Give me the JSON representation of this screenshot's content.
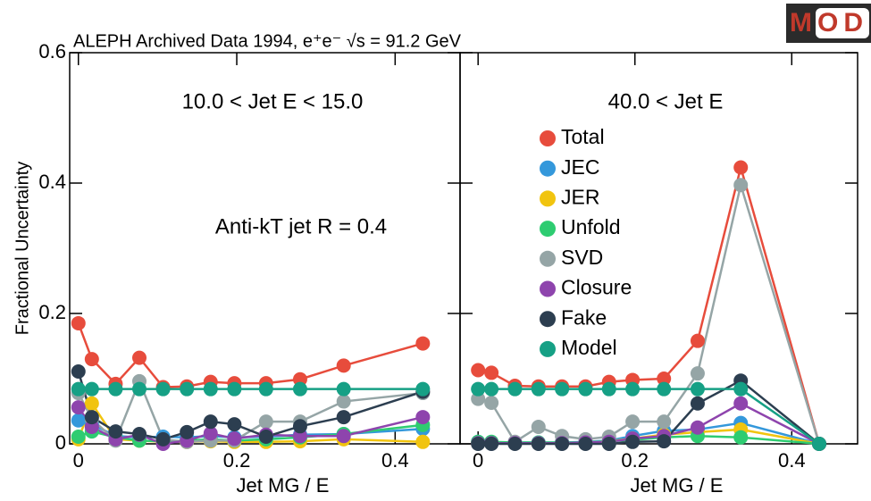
{
  "logo": "MOD",
  "chart_data": [
    {
      "type": "line",
      "title": "ALEPH Archived Data 1994, e⁺e⁻ √s = 91.2 GeV",
      "ylabel": "Fractional Uncertainty",
      "xlabel": "Jet MG / E",
      "annotations": [
        "10.0 < Jet E < 15.0",
        "Anti-kT jet R = 0.4"
      ],
      "x": [
        0,
        0.017,
        0.047,
        0.077,
        0.107,
        0.137,
        0.167,
        0.197,
        0.237,
        0.28,
        0.335,
        0.435
      ],
      "xlim": [
        -0.011,
        0.482
      ],
      "xticks": [
        0,
        0.2,
        0.4
      ],
      "ylim": [
        0,
        0.6
      ],
      "yticks": [
        0,
        0.2,
        0.4,
        0.6
      ],
      "series": [
        {
          "color": "#e74c3c",
          "values": [
            0.185,
            0.13,
            0.092,
            0.132,
            0.087,
            0.088,
            0.095,
            0.093,
            0.093,
            0.099,
            0.12,
            0.154
          ]
        },
        {
          "color": "#3498db",
          "values": [
            0.036,
            0.03,
            0.012,
            0.01,
            0.011,
            0.01,
            0.012,
            0.01,
            0.011,
            0.014,
            0.015,
            0.023
          ]
        },
        {
          "color": "#f1c40f",
          "values": [
            0.007,
            0.062,
            0.007,
            0.005,
            0.003,
            0.003,
            0.004,
            0.003,
            0.003,
            0.004,
            0.007,
            0.003
          ]
        },
        {
          "color": "#2ecc71",
          "values": [
            0.011,
            0.019,
            0.01,
            0.005,
            0.004,
            0.005,
            0.007,
            0.005,
            0.007,
            0.01,
            0.015,
            0.029
          ]
        },
        {
          "color": "#95a5a6",
          "values": [
            0.078,
            0.038,
            0.005,
            0.096,
            0.007,
            0.003,
            0.005,
            0.005,
            0.034,
            0.034,
            0.065,
            0.078
          ]
        },
        {
          "color": "#8e44ad",
          "values": [
            0.056,
            0.026,
            0.007,
            0.014,
            0,
            0.005,
            0.016,
            0.008,
            0.014,
            0.012,
            0.012,
            0.041
          ]
        },
        {
          "color": "#2c3e50",
          "values": [
            0.111,
            0.041,
            0.019,
            0.015,
            0.007,
            0.018,
            0.034,
            0.03,
            0.011,
            0.027,
            0.041,
            0.08
          ]
        },
        {
          "color": "#16a085",
          "values": [
            0.084,
            0.084,
            0.084,
            0.084,
            0.084,
            0.084,
            0.084,
            0.084,
            0.084,
            0.084,
            0.084,
            0.084
          ]
        }
      ]
    },
    {
      "type": "line",
      "xlabel": "Jet MG / E",
      "annotations": [
        "40.0 < Jet E"
      ],
      "x": [
        0,
        0.017,
        0.047,
        0.077,
        0.107,
        0.137,
        0.167,
        0.197,
        0.237,
        0.28,
        0.335,
        0.435
      ],
      "xlim": [
        -0.023,
        0.484
      ],
      "xticks": [
        0,
        0.2,
        0.4
      ],
      "ylim": [
        0,
        0.6
      ],
      "series": [
        {
          "name": "Total",
          "color": "#e74c3c",
          "values": [
            0.113,
            0.109,
            0.089,
            0.088,
            0.088,
            0.088,
            0.095,
            0.098,
            0.1,
            0.158,
            0.424,
            0
          ]
        },
        {
          "name": "JEC",
          "color": "#3498db",
          "values": [
            0.003,
            0.002,
            0.002,
            0.002,
            0.002,
            0.003,
            0.005,
            0.012,
            0.02,
            0.022,
            0.032,
            0
          ]
        },
        {
          "name": "JER",
          "color": "#f1c40f",
          "values": [
            0.002,
            0.002,
            0.001,
            0.001,
            0.001,
            0.002,
            0.004,
            0.008,
            0.014,
            0.018,
            0.022,
            0
          ]
        },
        {
          "name": "Unfold",
          "color": "#2ecc71",
          "values": [
            0.003,
            0.003,
            0.002,
            0.002,
            0.002,
            0.002,
            0.004,
            0.006,
            0.01,
            0.012,
            0.01,
            0
          ]
        },
        {
          "name": "SVD",
          "color": "#95a5a6",
          "values": [
            0.069,
            0.063,
            0.003,
            0.026,
            0.012,
            0.007,
            0.011,
            0.034,
            0.034,
            0.108,
            0.397,
            0
          ]
        },
        {
          "name": "Closure",
          "color": "#8e44ad",
          "values": [
            0.001,
            0.001,
            0.001,
            0.001,
            0.001,
            0.002,
            0.003,
            0.008,
            0.012,
            0.025,
            0.062,
            0
          ]
        },
        {
          "name": "Fake",
          "color": "#2c3e50",
          "values": [
            0,
            0,
            0,
            0,
            0,
            0,
            0,
            0.003,
            0.004,
            0.062,
            0.097,
            0
          ]
        },
        {
          "name": "Model",
          "color": "#16a085",
          "values": [
            0.084,
            0.084,
            0.084,
            0.084,
            0.084,
            0.084,
            0.084,
            0.084,
            0.084,
            0.084,
            0.084,
            0
          ]
        }
      ]
    }
  ]
}
